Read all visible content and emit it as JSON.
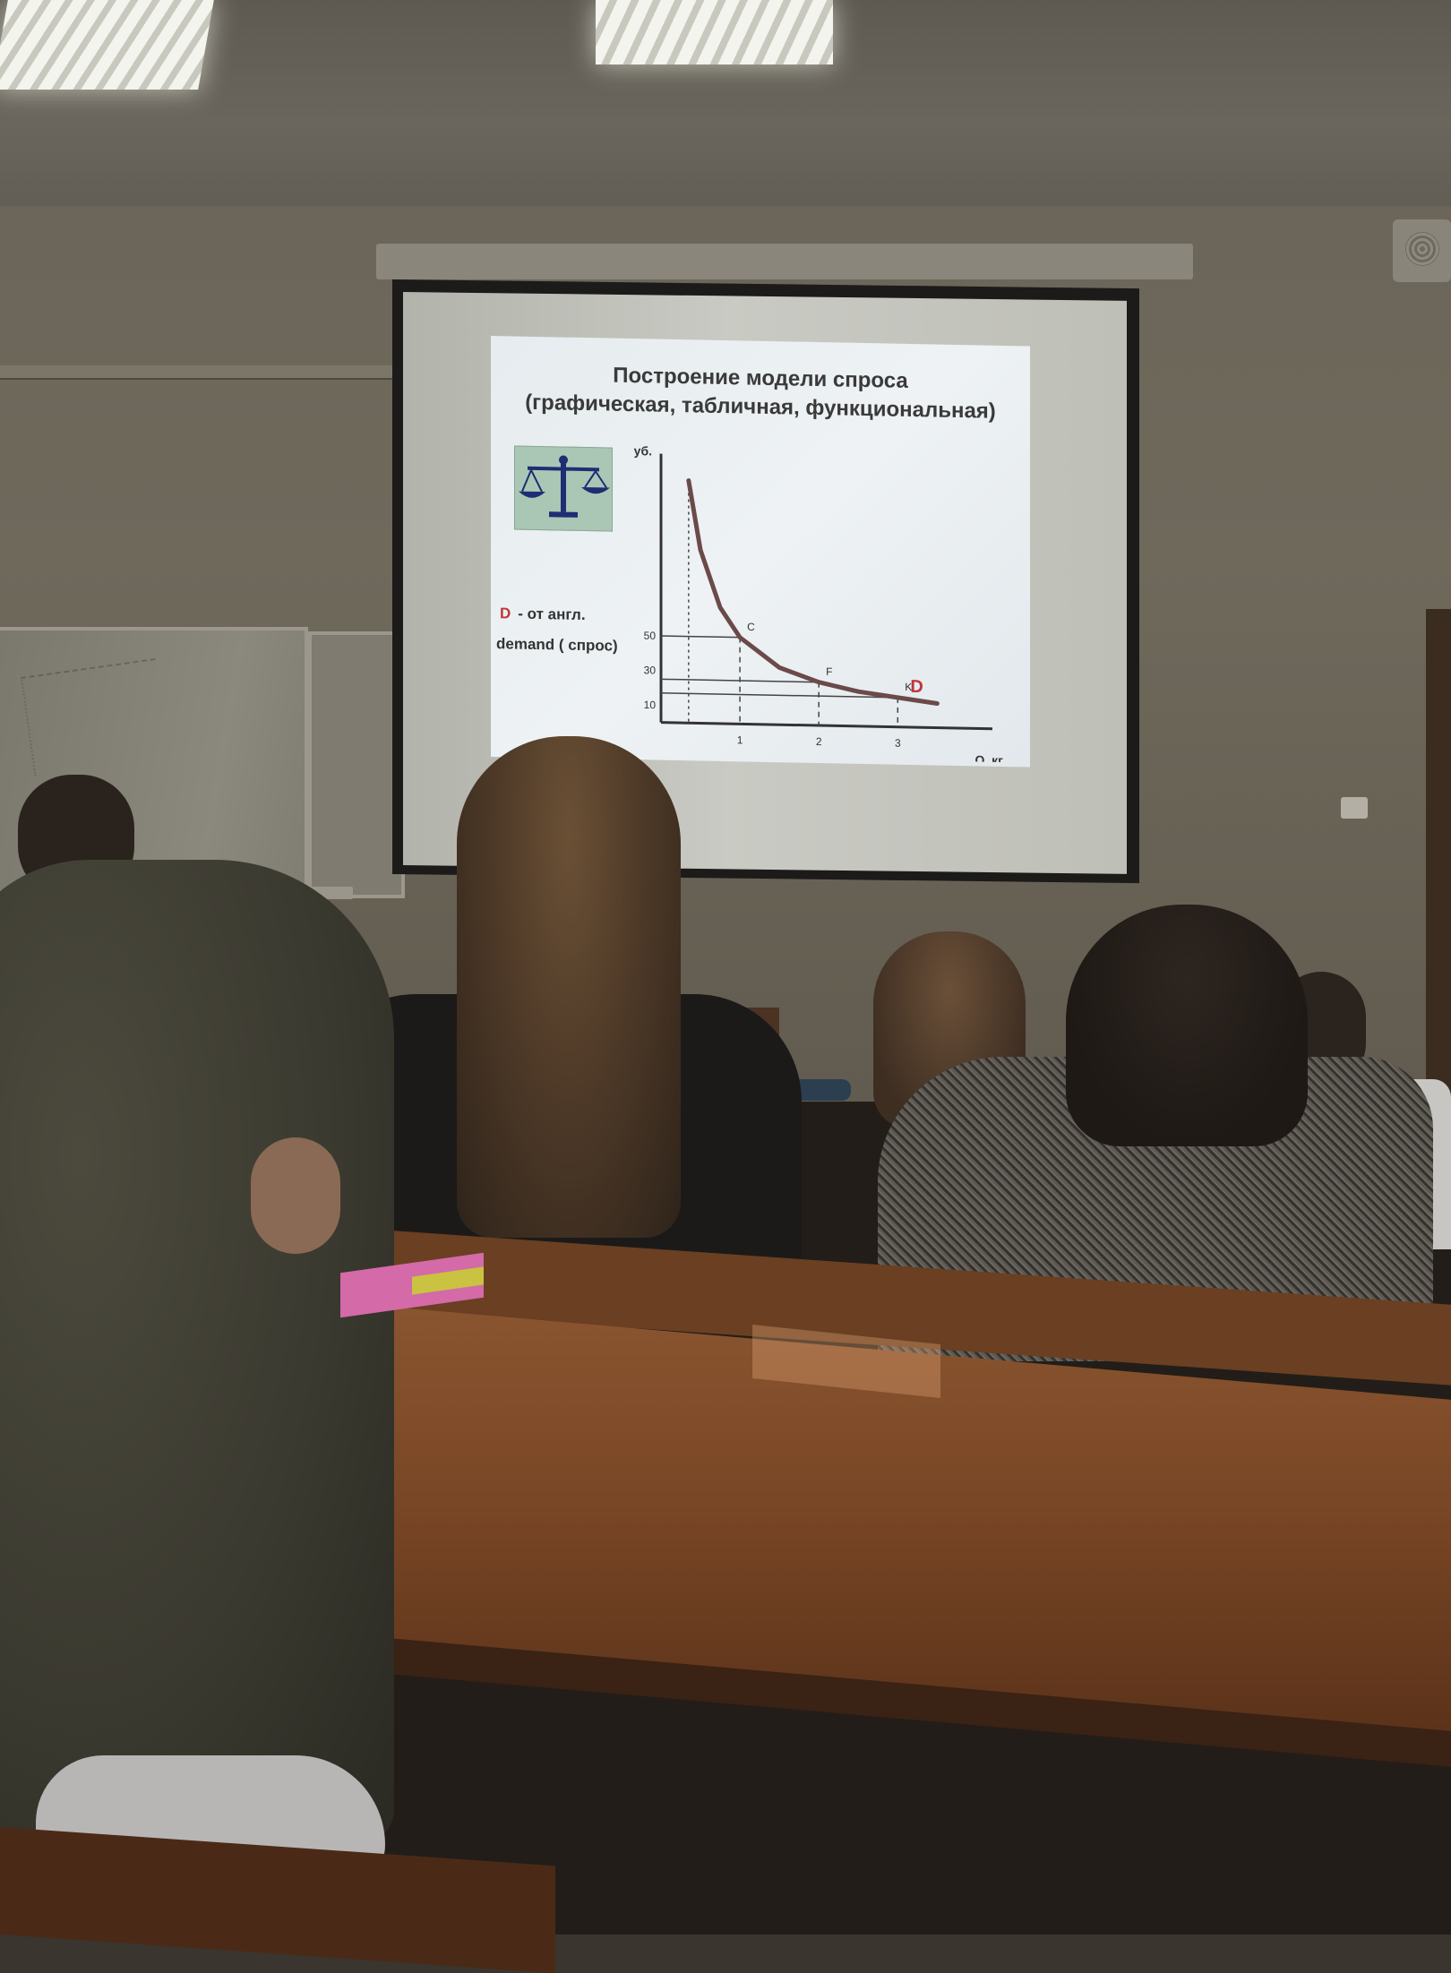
{
  "slide": {
    "title_line1": "Построение модели спроса",
    "title_line2": "(графическая, табличная, функциональная)",
    "d_letter": "D",
    "d_note": "- от англ.",
    "demand_note": "demand  ( спрос)"
  },
  "chart_data": {
    "type": "line",
    "title": "",
    "ylabel": "P, руб.",
    "xlabel": "Q, кг",
    "xticks": [
      "1",
      "2",
      "3"
    ],
    "yticks": [
      "10",
      "30",
      "50"
    ],
    "series": [
      {
        "name": "D",
        "x": [
          0.35,
          0.5,
          0.75,
          1.0,
          1.5,
          2.0,
          2.5,
          3.0,
          3.5
        ],
        "y": [
          140,
          100,
          67,
          50,
          33,
          25,
          20,
          17,
          14
        ]
      }
    ],
    "point_labels": [
      {
        "label": "C",
        "x": 1.0,
        "y": 50
      },
      {
        "label": "F",
        "x": 2.0,
        "y": 25
      },
      {
        "label": "K",
        "x": 3.0,
        "y": 17
      }
    ],
    "xlim": [
      0,
      4.2
    ],
    "ylim": [
      0,
      150
    ],
    "colors": {
      "curve": "#6b4a4a",
      "d_label": "#c0353c"
    }
  },
  "icons": {
    "balance": "balance-scale-icon"
  }
}
